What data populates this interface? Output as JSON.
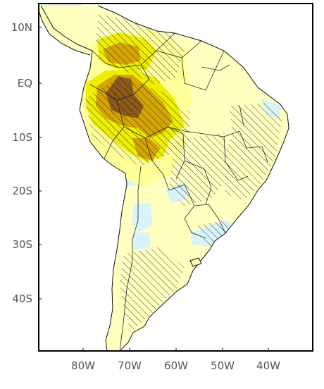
{
  "map": {
    "lat_labels": [
      "10N",
      "EQ",
      "10S",
      "20S",
      "30S",
      "40S"
    ],
    "lon_labels": [
      "80W",
      "70W",
      "60W",
      "50W",
      "40W"
    ],
    "lat_values": [
      10,
      0,
      -10,
      -20,
      -30,
      -40
    ],
    "lon_values": [
      -80,
      -70,
      -60,
      -50,
      -40
    ],
    "extent": {
      "lon_min": -90,
      "lon_max": -33,
      "lat_min": -49,
      "lat_max": 15
    },
    "colors": {
      "ocean": "#ffffff",
      "land_base": "#ffffc0",
      "light_yellow": "#ffff99",
      "yellow": "#eeee00",
      "gold": "#d4a500",
      "brown": "#8b5a1a",
      "light_cyan": "#d8f4f8",
      "hatch": "#222222",
      "frame": "#000000"
    },
    "hatching": "significance shown as diagonal hatching"
  }
}
